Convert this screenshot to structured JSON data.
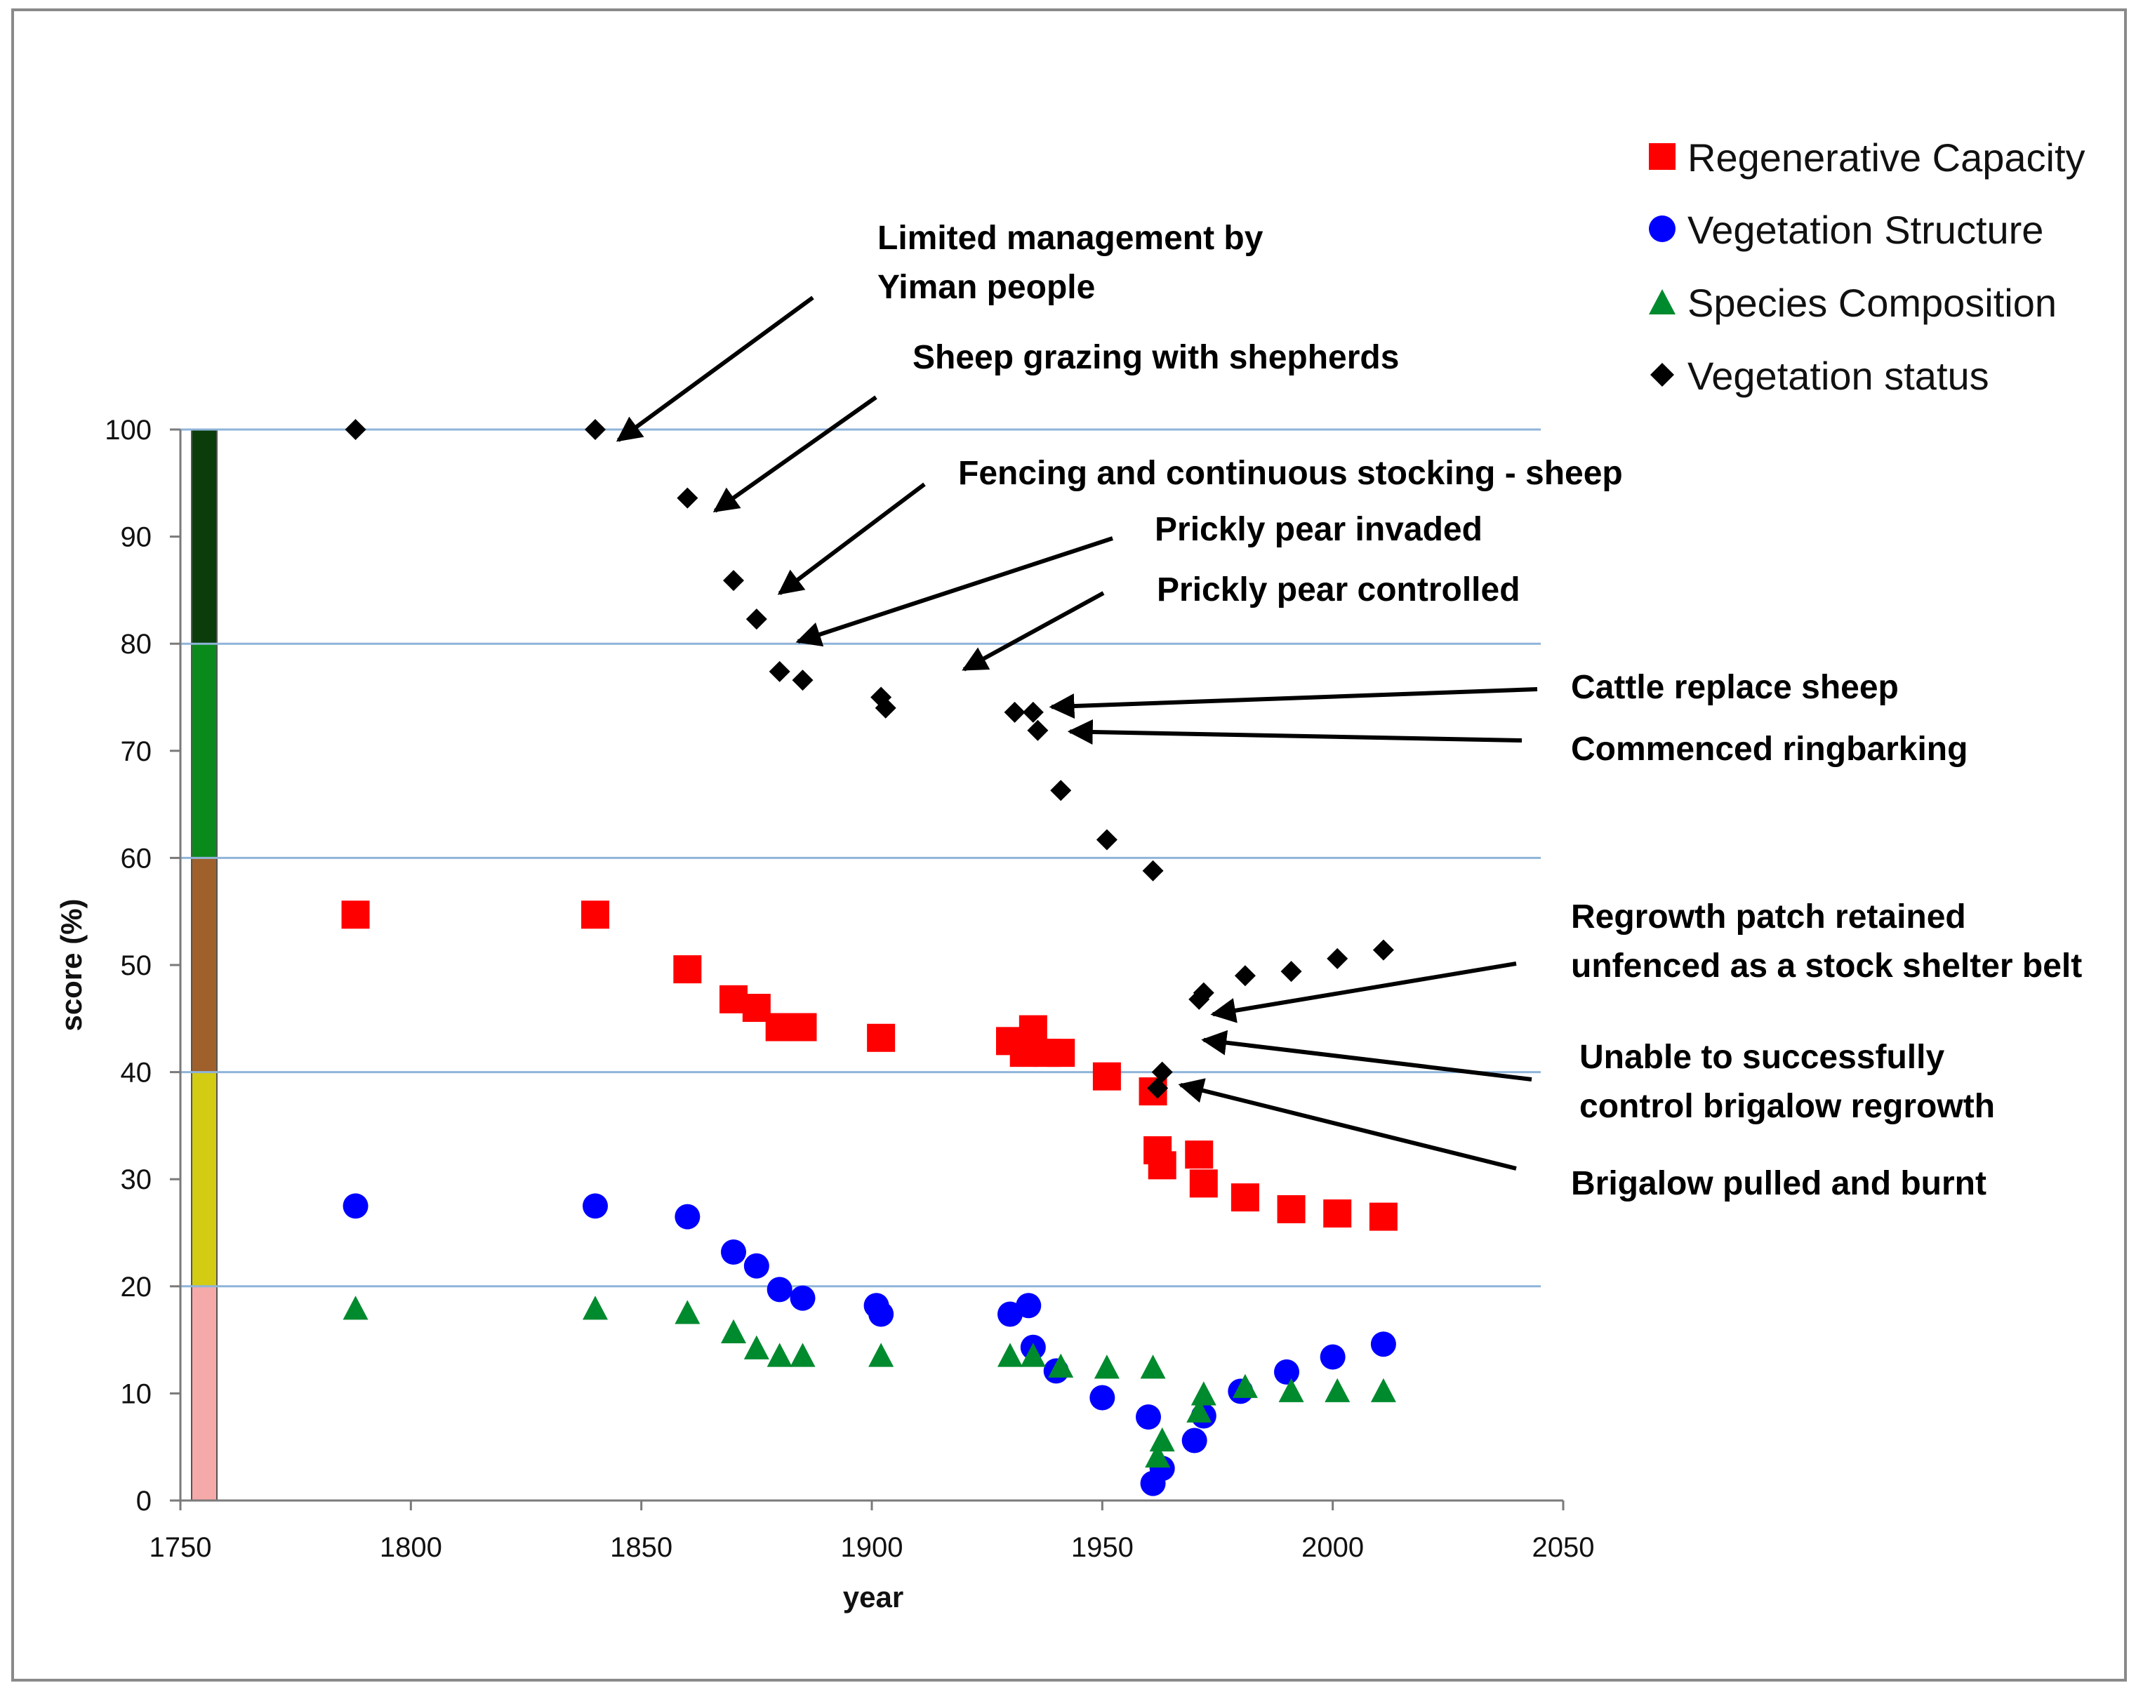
{
  "chart_data": {
    "type": "scatter",
    "xlabel": "year",
    "ylabel": "score  (%)",
    "xlim": [
      1750,
      2050
    ],
    "ylim": [
      0,
      100
    ],
    "xticks": [
      1750,
      1800,
      1850,
      1900,
      1950,
      2000,
      2050
    ],
    "yticks": [
      0,
      10,
      20,
      30,
      40,
      50,
      60,
      70,
      80,
      90,
      100
    ],
    "gridlines": [
      20,
      40,
      60,
      80,
      100
    ],
    "grid": "horizontal",
    "legend_position": "top-right",
    "status_bands": [
      {
        "from": 80,
        "to": 100,
        "color": "#0b3d0b"
      },
      {
        "from": 60,
        "to": 80,
        "color": "#0b8a1c"
      },
      {
        "from": 40,
        "to": 60,
        "color": "#a0602b"
      },
      {
        "from": 20,
        "to": 40,
        "color": "#d3cc12"
      },
      {
        "from": 0,
        "to": 20,
        "color": "#f6a9a9"
      }
    ],
    "series": [
      {
        "name": "Regenerative Capacity",
        "marker": "square",
        "color": "#ff0000",
        "points": [
          [
            1788,
            54.7
          ],
          [
            1840,
            54.7
          ],
          [
            1860,
            49.6
          ],
          [
            1870,
            46.8
          ],
          [
            1875,
            46.0
          ],
          [
            1880,
            44.2
          ],
          [
            1885,
            44.2
          ],
          [
            1902,
            43.2
          ],
          [
            1930,
            42.9
          ],
          [
            1933,
            41.8
          ],
          [
            1935,
            44.0
          ],
          [
            1938,
            41.8
          ],
          [
            1941,
            41.8
          ],
          [
            1951,
            39.6
          ],
          [
            1961,
            38.2
          ],
          [
            1962,
            32.7
          ],
          [
            1963,
            31.3
          ],
          [
            1971,
            32.3
          ],
          [
            1972,
            29.6
          ],
          [
            1981,
            28.3
          ],
          [
            1991,
            27.2
          ],
          [
            2001,
            26.8
          ],
          [
            2011,
            26.5
          ]
        ]
      },
      {
        "name": "Vegetation Structure",
        "marker": "circle",
        "color": "#0000ff",
        "points": [
          [
            1788,
            27.5
          ],
          [
            1840,
            27.5
          ],
          [
            1860,
            26.5
          ],
          [
            1870,
            23.2
          ],
          [
            1875,
            21.9
          ],
          [
            1880,
            19.7
          ],
          [
            1885,
            18.9
          ],
          [
            1901,
            18.2
          ],
          [
            1902,
            17.4
          ],
          [
            1930,
            17.4
          ],
          [
            1934,
            18.2
          ],
          [
            1935,
            14.3
          ],
          [
            1940,
            12.1
          ],
          [
            1950,
            9.6
          ],
          [
            1960,
            7.8
          ],
          [
            1961,
            1.6
          ],
          [
            1963,
            3.0
          ],
          [
            1970,
            5.6
          ],
          [
            1972,
            7.9
          ],
          [
            1980,
            10.2
          ],
          [
            1990,
            12.0
          ],
          [
            2000,
            13.4
          ],
          [
            2011,
            14.6
          ]
        ]
      },
      {
        "name": "Species Composition",
        "marker": "triangle",
        "color": "#008a2e",
        "points": [
          [
            1788,
            18.0
          ],
          [
            1840,
            18.0
          ],
          [
            1860,
            17.6
          ],
          [
            1870,
            15.8
          ],
          [
            1875,
            14.3
          ],
          [
            1880,
            13.6
          ],
          [
            1885,
            13.6
          ],
          [
            1902,
            13.6
          ],
          [
            1930,
            13.6
          ],
          [
            1935,
            13.6
          ],
          [
            1941,
            12.6
          ],
          [
            1951,
            12.5
          ],
          [
            1961,
            12.5
          ],
          [
            1962,
            4.2
          ],
          [
            1963,
            5.7
          ],
          [
            1971,
            8.4
          ],
          [
            1972,
            10.0
          ],
          [
            1981,
            10.7
          ],
          [
            1991,
            10.3
          ],
          [
            2001,
            10.3
          ],
          [
            2011,
            10.3
          ]
        ]
      },
      {
        "name": "Vegetation status",
        "marker": "diamond",
        "color": "#000000",
        "points": [
          [
            1788,
            100
          ],
          [
            1840,
            100
          ],
          [
            1860,
            93.6
          ],
          [
            1870,
            85.9
          ],
          [
            1875,
            82.3
          ],
          [
            1880,
            77.4
          ],
          [
            1885,
            76.6
          ],
          [
            1902,
            75.0
          ],
          [
            1903,
            74.0
          ],
          [
            1931,
            73.6
          ],
          [
            1935,
            73.6
          ],
          [
            1936,
            71.9
          ],
          [
            1941,
            66.3
          ],
          [
            1951,
            61.7
          ],
          [
            1961,
            58.8
          ],
          [
            1962,
            38.5
          ],
          [
            1963,
            40.0
          ],
          [
            1971,
            46.8
          ],
          [
            1972,
            47.4
          ],
          [
            1981,
            49.0
          ],
          [
            1991,
            49.4
          ],
          [
            2001,
            50.6
          ],
          [
            2011,
            51.4
          ]
        ]
      }
    ],
    "annotations": [
      {
        "lines": [
          "Limited management by",
          "Yiman people"
        ],
        "pointer": [
          1845,
          99
        ]
      },
      {
        "lines": [
          "Sheep grazing with shepherds"
        ],
        "pointer": [
          1866,
          92.4
        ]
      },
      {
        "lines": [
          "Fencing and continuous stocking - sheep"
        ],
        "pointer": [
          1880,
          84.7
        ]
      },
      {
        "lines": [
          "Prickly pear invaded"
        ],
        "pointer": [
          1884,
          80.2
        ]
      },
      {
        "lines": [
          "Prickly pear controlled"
        ],
        "pointer": [
          1920,
          77.6
        ]
      },
      {
        "lines": [
          "Cattle replace sheep"
        ],
        "pointer": [
          1939,
          74.1
        ]
      },
      {
        "lines": [
          "Commenced ringbarking"
        ],
        "pointer": [
          1943,
          71.8
        ]
      },
      {
        "lines": [
          "Regrowth patch retained",
          "unfenced as a stock shelter belt"
        ],
        "pointer": [
          1974,
          45.4
        ]
      },
      {
        "lines": [
          "Unable to successfully",
          "control brigalow regrowth"
        ],
        "pointer": [
          1972,
          43.0
        ]
      },
      {
        "lines": [
          "Brigalow pulled and burnt"
        ],
        "pointer": [
          1967,
          38.8
        ]
      }
    ]
  }
}
